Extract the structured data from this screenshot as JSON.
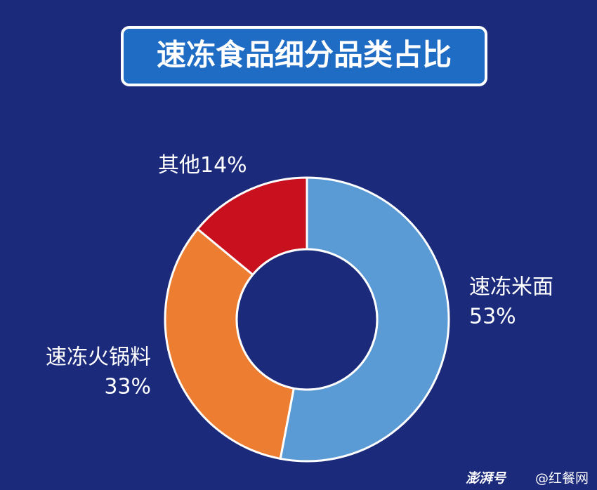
{
  "chart_data": {
    "type": "donut",
    "title": "速冻食品细分品类占比",
    "categories": [
      "速冻米面",
      "速冻火锅料",
      "其他"
    ],
    "values": [
      53,
      33,
      14
    ],
    "value_labels": [
      "53%",
      "33%",
      "14%"
    ],
    "colors": [
      "#5b9bd5",
      "#ed7d31",
      "#c8101e"
    ],
    "watermark": [
      "澎湃号",
      "@红餐网"
    ]
  }
}
